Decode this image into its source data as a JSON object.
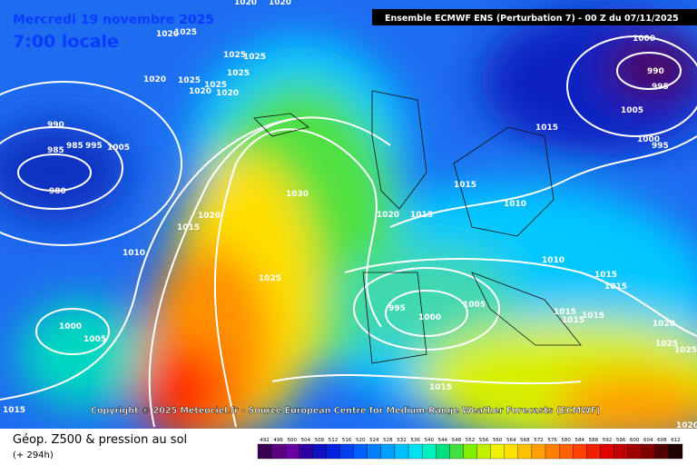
{
  "header": {
    "date": "Mercredi 19 novembre 2025",
    "time": "7:00 locale",
    "model": "Ensemble ECMWF ENS  (Perturbation 7)  - 00 Z du 07/11/2025"
  },
  "copyright": "Copyright © 2025 Meteociel.fr - Source European Centre for Medium-Range Weather Forecasts (ECMWF)",
  "legend": {
    "title": "Géop. Z500 & pression au sol",
    "lead": "(+ 294h)"
  },
  "colorbar": {
    "ticks": [
      492,
      496,
      500,
      504,
      508,
      512,
      516,
      520,
      524,
      528,
      532,
      536,
      540,
      544,
      548,
      552,
      556,
      560,
      564,
      568,
      572,
      576,
      580,
      584,
      588,
      592,
      596,
      600,
      604,
      608,
      612
    ],
    "colors": [
      "#3a0050",
      "#5a0080",
      "#6a00a0",
      "#3000a0",
      "#1010c0",
      "#0020e0",
      "#0040f0",
      "#0060ff",
      "#0080ff",
      "#00a0ff",
      "#00c0ff",
      "#00e0f0",
      "#00f0c0",
      "#00e080",
      "#40e040",
      "#80f000",
      "#c0f000",
      "#f0f000",
      "#ffe000",
      "#ffc000",
      "#ffa000",
      "#ff8000",
      "#ff6000",
      "#ff4000",
      "#f02000",
      "#e00000",
      "#c00000",
      "#a00000",
      "#800000",
      "#500000",
      "#200000"
    ]
  },
  "isobar_labels": [
    "1020",
    "1020",
    "1020",
    "1025",
    "1025",
    "1025",
    "1025",
    "1020",
    "1025",
    "1025",
    "1020",
    "1020",
    "990",
    "985",
    "985",
    "995",
    "1005",
    "980",
    "1020",
    "1015",
    "1010",
    "1030",
    "1025",
    "1000",
    "1005",
    "1015",
    "1020",
    "1015",
    "1015",
    "1010",
    "1015",
    "1000",
    "990",
    "995",
    "1005",
    "1000",
    "995",
    "1010",
    "1015",
    "1015",
    "995",
    "1000",
    "1005",
    "1015",
    "1015",
    "1015",
    "1020",
    "1025",
    "1025",
    "1015",
    "1020"
  ]
}
